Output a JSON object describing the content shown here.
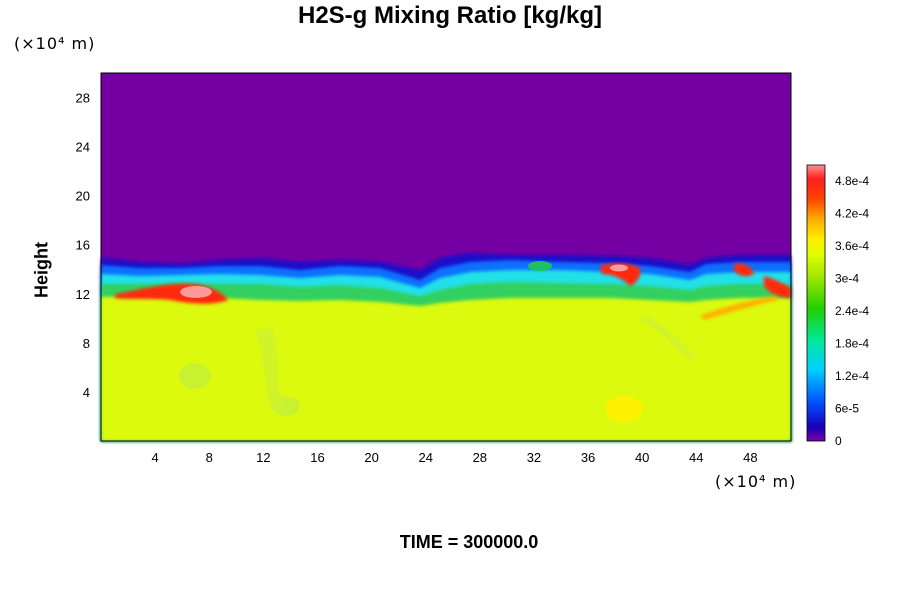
{
  "chart_data": {
    "type": "heatmap",
    "title": "H2S-g Mixing Ratio [kg/kg]",
    "ylabel": "Height",
    "xlabel": "",
    "x_unit": "(×10⁴ m)",
    "y_unit": "(×10⁴ m)",
    "time_label": "TIME = 300000.0",
    "x_ticks": [
      4,
      8,
      12,
      16,
      20,
      24,
      28,
      32,
      36,
      40,
      44,
      48
    ],
    "y_ticks": [
      4,
      8,
      12,
      16,
      20,
      24,
      28
    ],
    "xlim": [
      0,
      51
    ],
    "ylim": [
      0,
      30
    ],
    "colorbar": {
      "labels": [
        "4.8e-4",
        "4.2e-4",
        "3.6e-4",
        "3e-4",
        "2.4e-4",
        "1.8e-4",
        "1.2e-4",
        "6e-5",
        "0"
      ],
      "values": [
        0.00048,
        0.00042,
        0.00036,
        0.0003,
        0.00024,
        0.00018,
        0.00012,
        6e-05,
        0
      ],
      "range": [
        0,
        0.00051
      ]
    },
    "regions": {
      "upper_value": 0,
      "lower_value": 0.00035,
      "interface_height": 13.5,
      "peak_value": 0.00051
    }
  }
}
